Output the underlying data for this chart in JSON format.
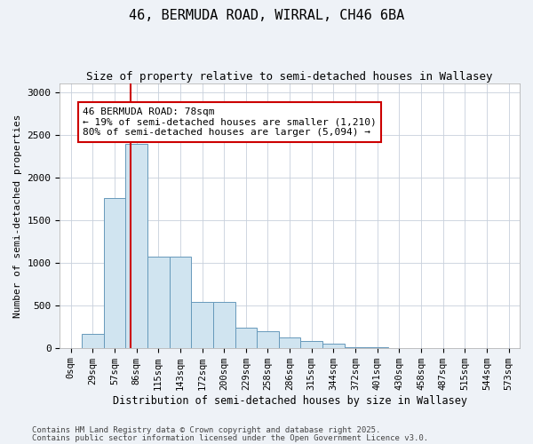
{
  "title1": "46, BERMUDA ROAD, WIRRAL, CH46 6BA",
  "title2": "Size of property relative to semi-detached houses in Wallasey",
  "xlabel": "Distribution of semi-detached houses by size in Wallasey",
  "ylabel": "Number of semi-detached properties",
  "bar_color": "#d0e4f0",
  "bar_edge_color": "#6699bb",
  "categories": [
    "0sqm",
    "29sqm",
    "57sqm",
    "86sqm",
    "115sqm",
    "143sqm",
    "172sqm",
    "200sqm",
    "229sqm",
    "258sqm",
    "286sqm",
    "315sqm",
    "344sqm",
    "372sqm",
    "401sqm",
    "430sqm",
    "458sqm",
    "487sqm",
    "515sqm",
    "544sqm",
    "573sqm"
  ],
  "values": [
    0,
    160,
    1760,
    2390,
    1070,
    1065,
    540,
    540,
    235,
    190,
    120,
    80,
    45,
    8,
    3,
    1,
    0,
    0,
    0,
    0,
    0
  ],
  "ylim": [
    0,
    3100
  ],
  "yticks": [
    0,
    500,
    1000,
    1500,
    2000,
    2500,
    3000
  ],
  "vline_color": "#cc0000",
  "annotation_text": "46 BERMUDA ROAD: 78sqm\n← 19% of semi-detached houses are smaller (1,210)\n80% of semi-detached houses are larger (5,094) →",
  "footer1": "Contains HM Land Registry data © Crown copyright and database right 2025.",
  "footer2": "Contains public sector information licensed under the Open Government Licence v3.0.",
  "bg_color": "#eef2f7",
  "plot_bg_color": "#ffffff",
  "grid_color": "#c8d0dc"
}
